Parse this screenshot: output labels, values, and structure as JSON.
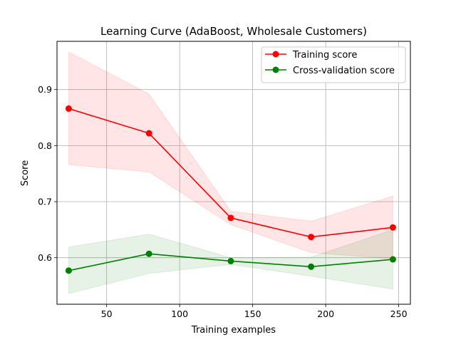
{
  "chart_data": {
    "type": "line",
    "title": "Learning Curve (AdaBoost, Wholesale Customers)",
    "xlabel": "Training examples",
    "ylabel": "Score",
    "xlim": [
      16,
      258
    ],
    "ylim": [
      0.517,
      0.986
    ],
    "xticks": [
      50,
      100,
      150,
      200,
      250
    ],
    "yticks": [
      0.6,
      0.7,
      0.8,
      0.9
    ],
    "xtick_labels": [
      "50",
      "100",
      "150",
      "200",
      "250"
    ],
    "ytick_labels": [
      "0.6",
      "0.7",
      "0.8",
      "0.9"
    ],
    "grid": true,
    "legend_position": "top-right",
    "x": [
      24,
      79,
      135,
      190,
      246
    ],
    "series": [
      {
        "name": "Training score",
        "color": "#ff0000",
        "values": [
          0.866,
          0.822,
          0.671,
          0.637,
          0.654
        ],
        "band_lower": [
          0.766,
          0.753,
          0.659,
          0.609,
          0.598
        ],
        "band_upper": [
          0.967,
          0.892,
          0.683,
          0.665,
          0.71
        ]
      },
      {
        "name": "Cross-validation score",
        "color": "#008000",
        "values": [
          0.577,
          0.607,
          0.594,
          0.584,
          0.597
        ],
        "band_lower": [
          0.536,
          0.572,
          0.588,
          0.567,
          0.544
        ],
        "band_upper": [
          0.619,
          0.642,
          0.6,
          0.601,
          0.65
        ]
      }
    ]
  }
}
